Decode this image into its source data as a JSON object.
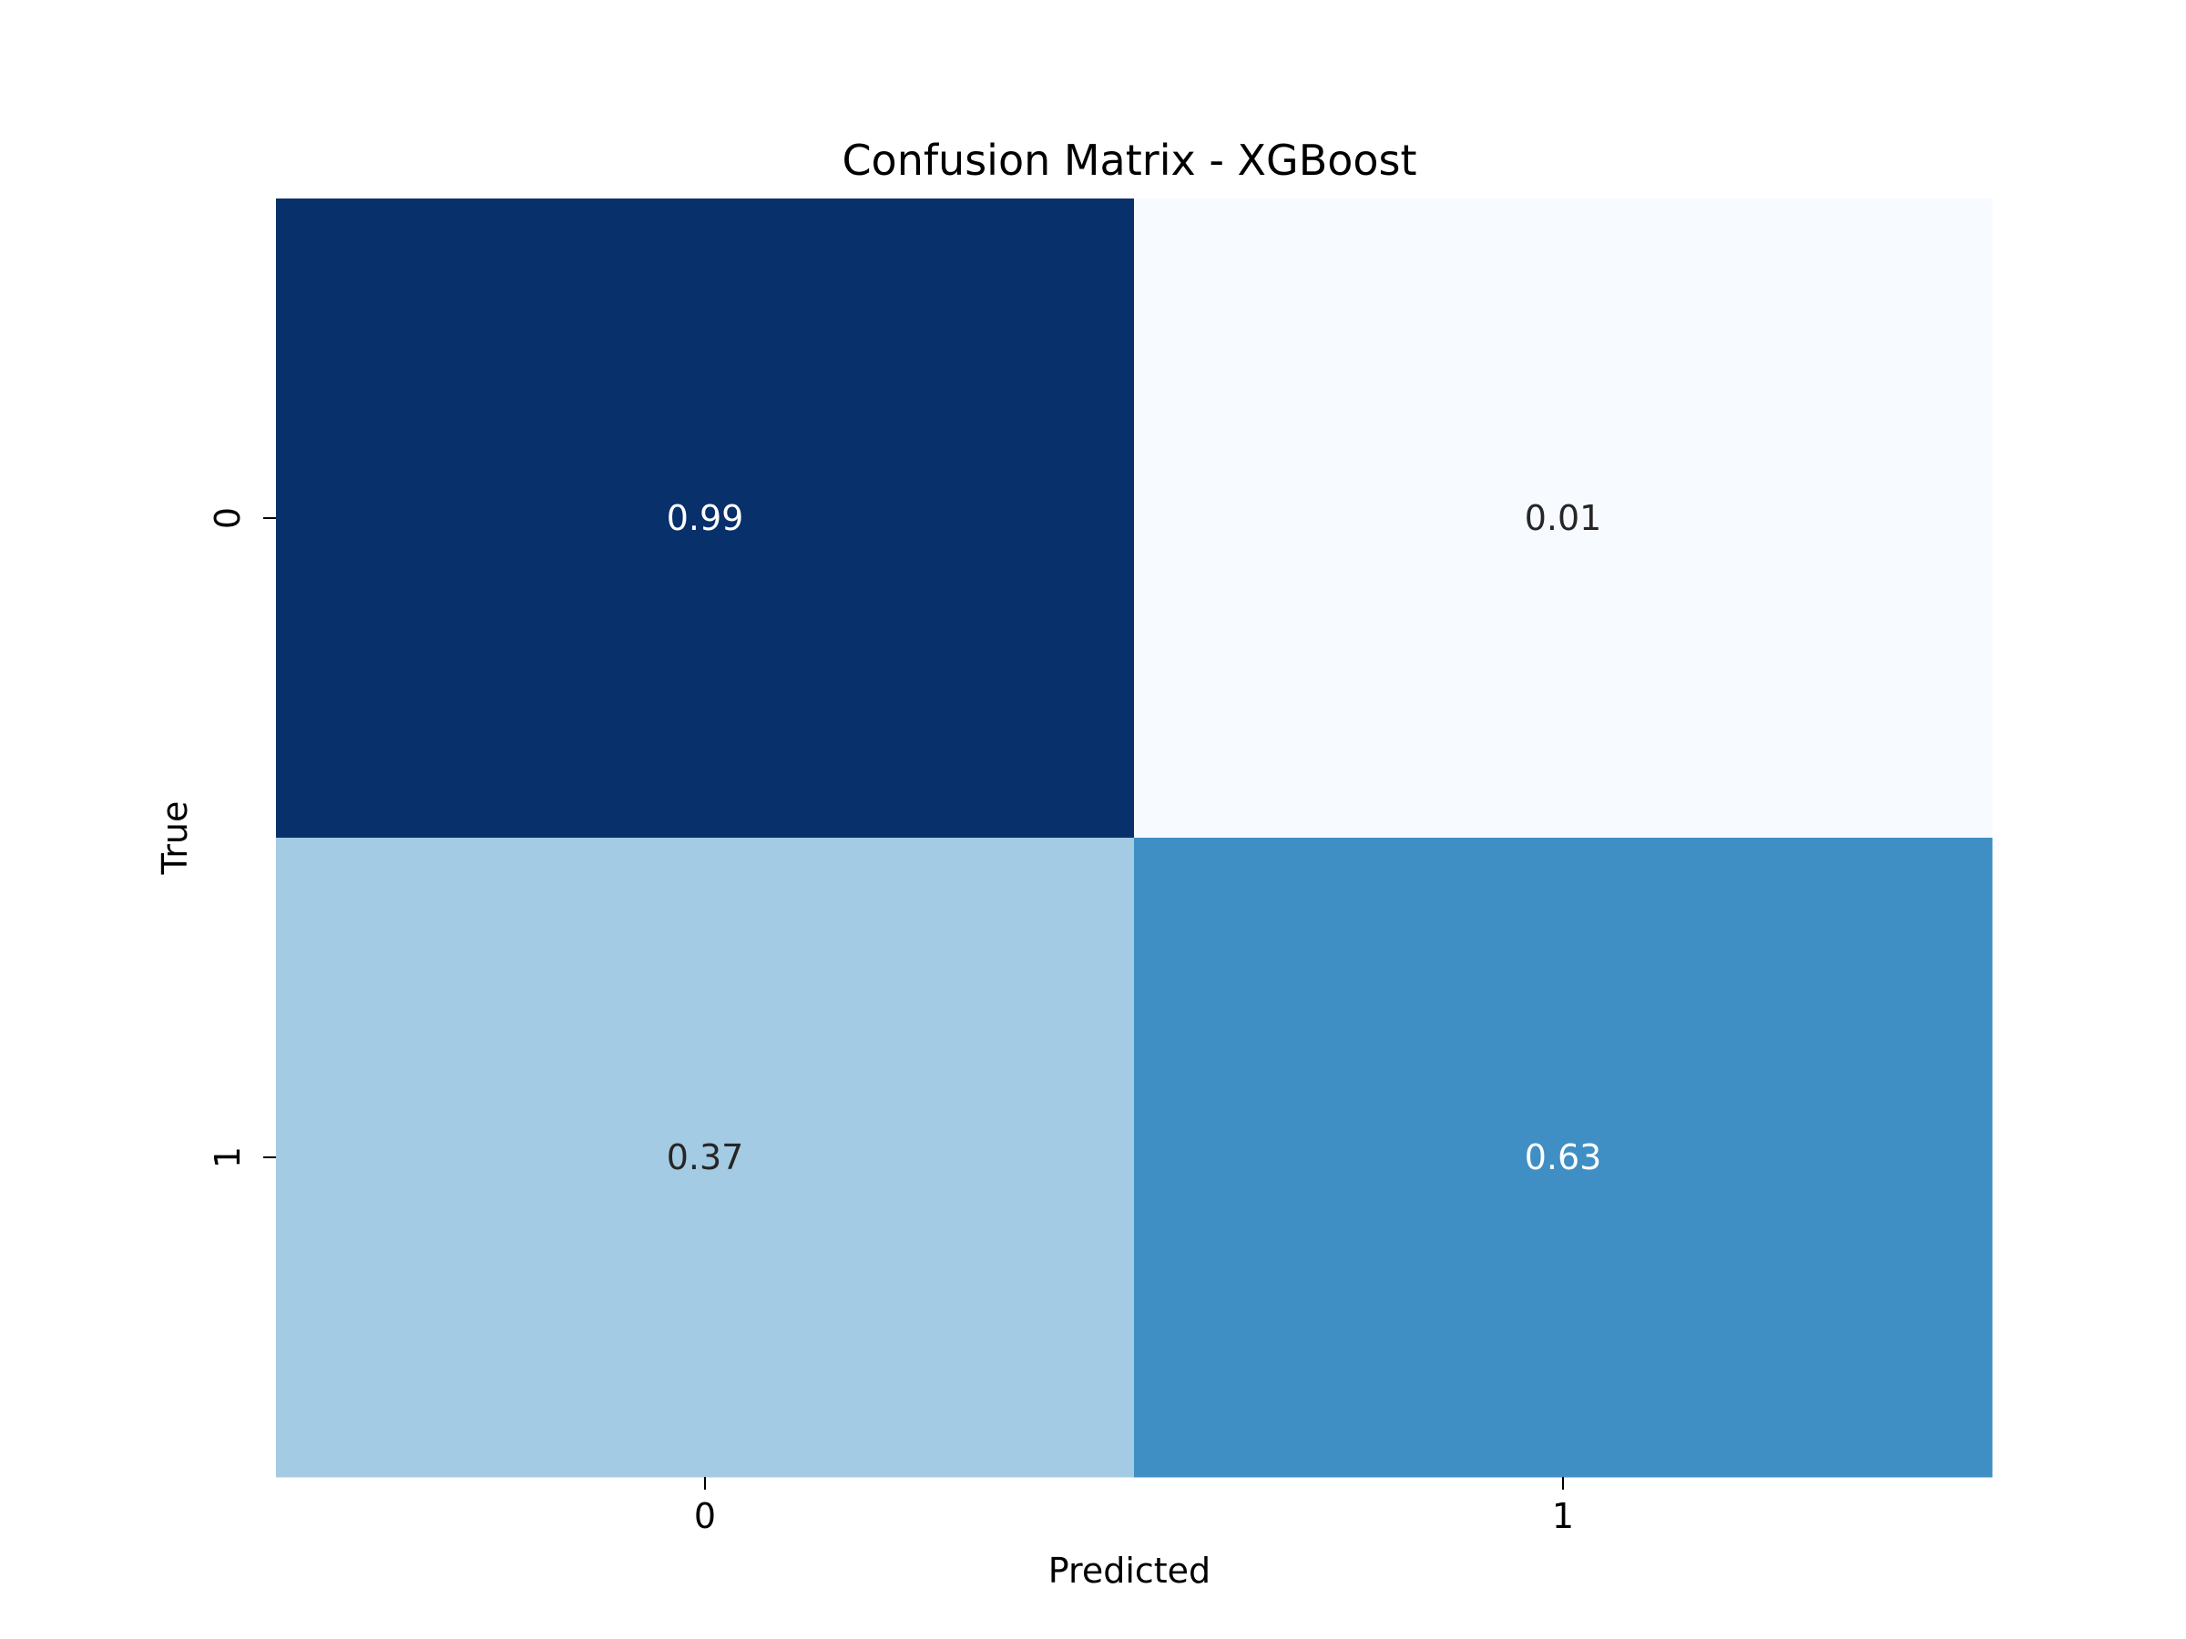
{
  "chart_data": {
    "type": "heatmap",
    "title": "Confusion Matrix - XGBoost",
    "xlabel": "Predicted",
    "ylabel": "True",
    "x_categories": [
      "0",
      "1"
    ],
    "y_categories": [
      "0",
      "1"
    ],
    "values": [
      [
        0.99,
        0.01
      ],
      [
        0.37,
        0.63
      ]
    ],
    "value_labels": [
      [
        "0.99",
        "0.01"
      ],
      [
        "0.37",
        "0.63"
      ]
    ],
    "cell_colors": [
      [
        "#08306b",
        "#f7fbff"
      ],
      [
        "#a3cbe3",
        "#3f8fc5"
      ]
    ],
    "label_colors": [
      [
        "#ffffff",
        "#262626"
      ],
      [
        "#262626",
        "#ffffff"
      ]
    ],
    "colormap": "Blues",
    "colorbar": false,
    "grid": false
  }
}
